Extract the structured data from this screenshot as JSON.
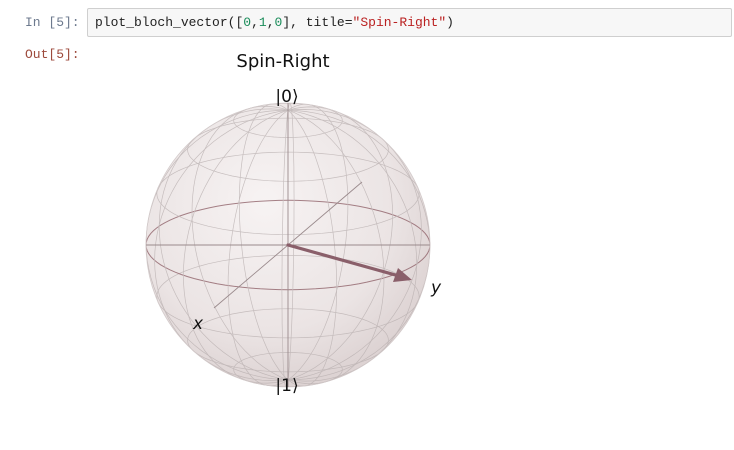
{
  "cell": {
    "in_prompt": "In [5]:",
    "out_prompt": "Out[5]:",
    "code": {
      "fn": "plot_bloch_vector(",
      "open_bracket": "[",
      "n0": "0",
      "c1": ",",
      "n1": "1",
      "c2": ",",
      "n2": "0",
      "close_bracket": "]",
      "kw": ", title=",
      "str": "\"Spin-Right\"",
      "end": ")"
    }
  },
  "figure": {
    "title": "Spin-Right",
    "labels": {
      "top": "|0⟩",
      "bottom": "|1⟩",
      "x": "x",
      "y": "y"
    },
    "vector": [
      0,
      1,
      0
    ],
    "colors": {
      "sphere_fill": "#ebe4e4",
      "wire": "#a8a0a0",
      "equator": "#8a5a62",
      "arrow": "#8a5f6a"
    }
  }
}
